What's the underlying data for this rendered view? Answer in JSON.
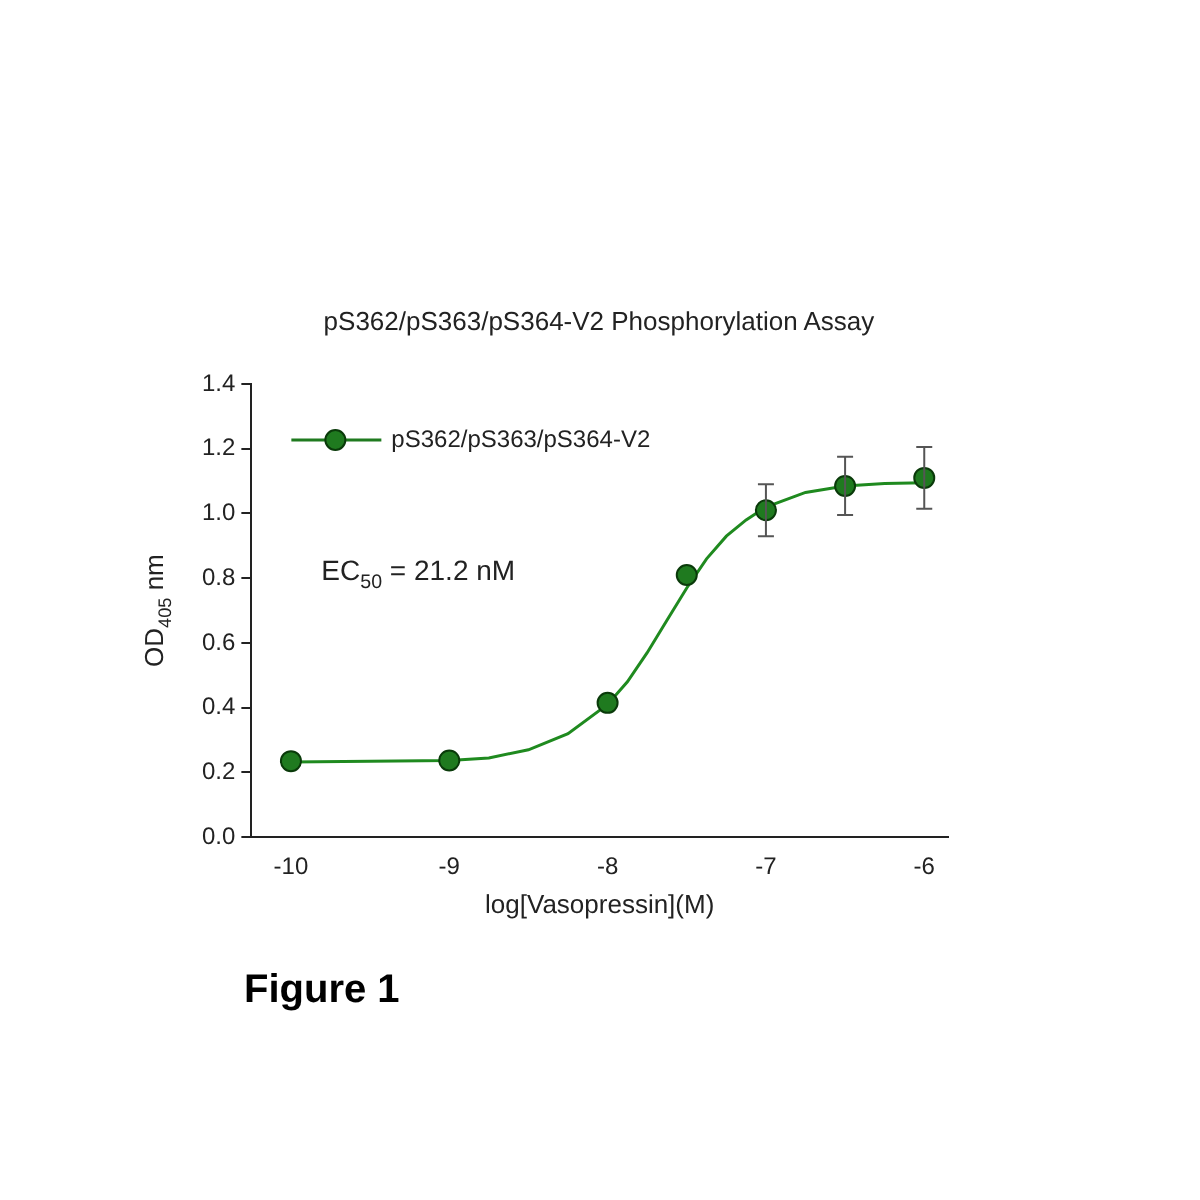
{
  "chart_data": {
    "type": "scatter",
    "title": "pS362/pS363/pS364-V2 Phosphorylation Assay",
    "xlabel": "log[Vasopressin](M)",
    "ylabel": "OD$_{405}$ nm",
    "annotations": [
      "EC$_{50}$ = 21.2 nM",
      "Figure 1"
    ],
    "series": [
      {
        "type": "line",
        "color": "#1f8a1f",
        "marker": "none",
        "x": [
          -10,
          -9,
          -8.75,
          -8.5,
          -8.25,
          -8,
          -7.875,
          -7.75,
          -7.625,
          -7.5,
          -7.375,
          -7.25,
          -7.125,
          -7,
          -6.75,
          -6.5,
          -6.25,
          -6
        ],
        "values": [
          0.232,
          0.237,
          0.245,
          0.27,
          0.32,
          0.41,
          0.48,
          0.57,
          0.67,
          0.77,
          0.86,
          0.93,
          0.98,
          1.02,
          1.065,
          1.085,
          1.093,
          1.095
        ]
      },
      {
        "name": "pS362/pS363/pS364-V2",
        "color": "#1f7a1f",
        "marker": "circle",
        "x": [
          -10,
          -9,
          -8,
          -7.5,
          -7,
          -6.5,
          -6
        ],
        "values": [
          0.235,
          0.237,
          0.415,
          0.81,
          1.01,
          1.085,
          1.11
        ],
        "errors": [
          null,
          null,
          null,
          null,
          0.08,
          0.09,
          0.095
        ]
      }
    ],
    "xlim": [
      -10.25,
      -5.85
    ],
    "xticks": [
      -10,
      -9,
      -8,
      -7,
      -6
    ],
    "ylim": [
      0,
      1.4
    ],
    "yticks": [
      {
        "value": 0,
        "label": "0.0"
      },
      0.2,
      0.4,
      0.6,
      0.8,
      {
        "value": 1,
        "label": "1.0"
      },
      1.2,
      1.4
    ],
    "grid": false,
    "legend": "top left"
  }
}
